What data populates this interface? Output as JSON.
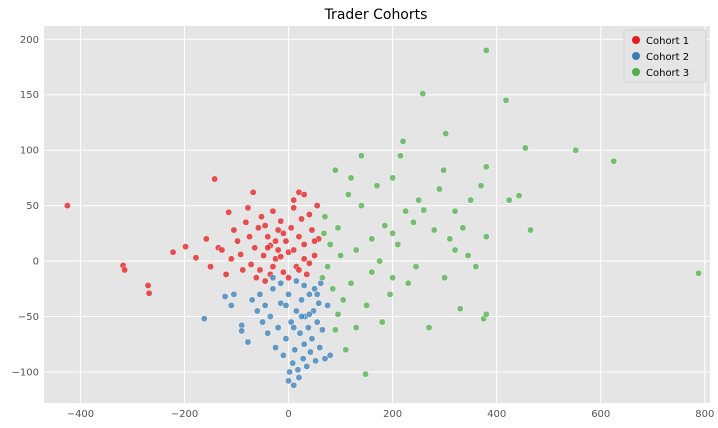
{
  "chart_data": {
    "type": "scatter",
    "title": "Trader Cohorts",
    "xlabel": "",
    "ylabel": "",
    "xlim": [
      -470,
      810
    ],
    "ylim": [
      -128,
      212
    ],
    "xticks": [
      -400,
      -200,
      0,
      200,
      400,
      600,
      800
    ],
    "yticks": [
      -100,
      -50,
      0,
      50,
      100,
      150,
      200
    ],
    "grid": true,
    "legend_position": "top-right",
    "colors": {
      "plot_bg": "#E5E5E5",
      "grid": "#FFFFFF",
      "cohort1": "#E41A1C",
      "cohort2": "#377EB8",
      "cohort3": "#4DAF4A"
    },
    "series": [
      {
        "name": "Cohort 1",
        "points": [
          [
            -425,
            50
          ],
          [
            -318,
            -4
          ],
          [
            -315,
            -8
          ],
          [
            -270,
            -22
          ],
          [
            -268,
            -29
          ],
          [
            -222,
            8
          ],
          [
            -198,
            13
          ],
          [
            -178,
            3
          ],
          [
            -158,
            20
          ],
          [
            -150,
            -5
          ],
          [
            -142,
            74
          ],
          [
            -135,
            12
          ],
          [
            -128,
            10
          ],
          [
            -120,
            -12
          ],
          [
            -115,
            44
          ],
          [
            -110,
            2
          ],
          [
            -105,
            28
          ],
          [
            -98,
            18
          ],
          [
            -92,
            6
          ],
          [
            -88,
            -8
          ],
          [
            -82,
            35
          ],
          [
            -78,
            48
          ],
          [
            -75,
            22
          ],
          [
            -72,
            -3
          ],
          [
            -68,
            62
          ],
          [
            -65,
            12
          ],
          [
            -62,
            -15
          ],
          [
            -58,
            30
          ],
          [
            -52,
            40
          ],
          [
            -48,
            5
          ],
          [
            -45,
            -18
          ],
          [
            -40,
            22
          ],
          [
            -35,
            14
          ],
          [
            -30,
            45
          ],
          [
            -25,
            2
          ],
          [
            -20,
            28
          ],
          [
            -15,
            36
          ],
          [
            -10,
            -10
          ],
          [
            -5,
            18
          ],
          [
            0,
            8
          ],
          [
            5,
            30
          ],
          [
            10,
            48
          ],
          [
            15,
            -5
          ],
          [
            20,
            22
          ],
          [
            25,
            38
          ],
          [
            30,
            15
          ],
          [
            35,
            -12
          ],
          [
            40,
            42
          ],
          [
            45,
            28
          ],
          [
            50,
            5
          ],
          [
            55,
            50
          ],
          [
            58,
            20
          ],
          [
            20,
            62
          ],
          [
            30,
            60
          ],
          [
            10,
            55
          ],
          [
            -40,
            12
          ],
          [
            -30,
            -5
          ],
          [
            -20,
            10
          ],
          [
            -10,
            25
          ],
          [
            0,
            -15
          ],
          [
            10,
            10
          ],
          [
            20,
            -8
          ],
          [
            30,
            2
          ],
          [
            40,
            -2
          ],
          [
            50,
            18
          ],
          [
            -55,
            -8
          ],
          [
            -45,
            32
          ],
          [
            -35,
            -12
          ],
          [
            -25,
            18
          ],
          [
            -15,
            4
          ]
        ]
      },
      {
        "name": "Cohort 2",
        "points": [
          [
            -162,
            -52
          ],
          [
            -122,
            -32
          ],
          [
            -110,
            -40
          ],
          [
            -105,
            -30
          ],
          [
            -90,
            -58
          ],
          [
            -90,
            -63
          ],
          [
            -78,
            -73
          ],
          [
            -70,
            -35
          ],
          [
            -60,
            -45
          ],
          [
            -55,
            -30
          ],
          [
            -50,
            -55
          ],
          [
            -45,
            -40
          ],
          [
            -40,
            -65
          ],
          [
            -35,
            -50
          ],
          [
            -30,
            -25
          ],
          [
            -25,
            -78
          ],
          [
            -20,
            -60
          ],
          [
            -15,
            -38
          ],
          [
            -10,
            -85
          ],
          [
            -5,
            -70
          ],
          [
            0,
            -108
          ],
          [
            2,
            -100
          ],
          [
            5,
            -55
          ],
          [
            8,
            -92
          ],
          [
            10,
            -112
          ],
          [
            12,
            -80
          ],
          [
            15,
            -45
          ],
          [
            18,
            -98
          ],
          [
            20,
            -105
          ],
          [
            22,
            -65
          ],
          [
            25,
            -35
          ],
          [
            28,
            -88
          ],
          [
            30,
            -75
          ],
          [
            32,
            -50
          ],
          [
            35,
            -95
          ],
          [
            38,
            -60
          ],
          [
            40,
            -30
          ],
          [
            42,
            -82
          ],
          [
            45,
            -70
          ],
          [
            48,
            -45
          ],
          [
            50,
            -25
          ],
          [
            52,
            -90
          ],
          [
            55,
            -55
          ],
          [
            58,
            -38
          ],
          [
            60,
            -78
          ],
          [
            62,
            -20
          ],
          [
            65,
            -62
          ],
          [
            70,
            -88
          ],
          [
            75,
            -40
          ],
          [
            80,
            -85
          ],
          [
            -30,
            -15
          ],
          [
            -15,
            -20
          ],
          [
            0,
            -30
          ],
          [
            15,
            -18
          ],
          [
            30,
            -22
          ],
          [
            -5,
            -40
          ],
          [
            10,
            -60
          ],
          [
            25,
            -50
          ],
          [
            40,
            -48
          ],
          [
            55,
            -30
          ]
        ]
      },
      {
        "name": "Cohort 3",
        "points": [
          [
            380,
            190
          ],
          [
            418,
            145
          ],
          [
            258,
            151
          ],
          [
            302,
            115
          ],
          [
            455,
            102
          ],
          [
            552,
            100
          ],
          [
            625,
            90
          ],
          [
            788,
            -11
          ],
          [
            220,
            108
          ],
          [
            215,
            95
          ],
          [
            380,
            85
          ],
          [
            298,
            82
          ],
          [
            350,
            55
          ],
          [
            424,
            55
          ],
          [
            443,
            59
          ],
          [
            465,
            28
          ],
          [
            370,
            68
          ],
          [
            260,
            46
          ],
          [
            185,
            32
          ],
          [
            225,
            45
          ],
          [
            160,
            20
          ],
          [
            140,
            50
          ],
          [
            115,
            60
          ],
          [
            95,
            30
          ],
          [
            80,
            15
          ],
          [
            75,
            -5
          ],
          [
            70,
            40
          ],
          [
            68,
            25
          ],
          [
            65,
            -15
          ],
          [
            85,
            -25
          ],
          [
            100,
            5
          ],
          [
            105,
            -35
          ],
          [
            120,
            -20
          ],
          [
            130,
            10
          ],
          [
            150,
            -40
          ],
          [
            160,
            -10
          ],
          [
            175,
            0
          ],
          [
            195,
            -30
          ],
          [
            210,
            15
          ],
          [
            230,
            -20
          ],
          [
            245,
            -5
          ],
          [
            270,
            -60
          ],
          [
            300,
            -15
          ],
          [
            320,
            10
          ],
          [
            330,
            -43
          ],
          [
            345,
            5
          ],
          [
            360,
            -5
          ],
          [
            375,
            -52
          ],
          [
            380,
            -48
          ],
          [
            90,
            -62
          ],
          [
            130,
            -60
          ],
          [
            148,
            -102
          ],
          [
            110,
            -80
          ],
          [
            95,
            -48
          ],
          [
            180,
            -55
          ],
          [
            200,
            25
          ],
          [
            240,
            35
          ],
          [
            280,
            28
          ],
          [
            310,
            20
          ],
          [
            335,
            30
          ],
          [
            120,
            75
          ],
          [
            170,
            68
          ],
          [
            90,
            82
          ],
          [
            140,
            95
          ],
          [
            200,
            75
          ],
          [
            250,
            55
          ],
          [
            290,
            65
          ],
          [
            320,
            45
          ],
          [
            380,
            22
          ],
          [
            200,
            -15
          ]
        ]
      }
    ]
  }
}
